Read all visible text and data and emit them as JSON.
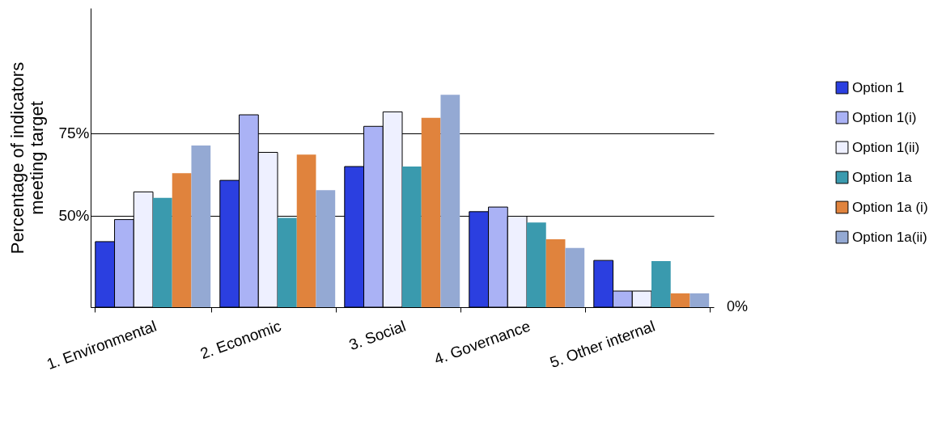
{
  "chart_data": {
    "type": "bar",
    "ylabel": "Percentage of indicators\nmeeting  target",
    "categories": [
      "1. Environmental",
      "2. Economic",
      "3. Social",
      "4. Governance",
      "5. Other internal"
    ],
    "series": [
      {
        "name": "Option 1",
        "color": "#2b3fe0",
        "values": [
          42.1,
          60.7,
          64.9,
          51.2,
          36.4
        ]
      },
      {
        "name": "Option 1(i)",
        "color": "#aab2f5",
        "values": [
          48.8,
          80.6,
          77.1,
          52.6,
          27.1
        ]
      },
      {
        "name": "Option 1(ii)",
        "color": "#eef0ff",
        "values": [
          57.2,
          69.2,
          81.5,
          49.8,
          27.1
        ]
      },
      {
        "name": "Option 1a",
        "color": "#3a9aae",
        "values": [
          55.4,
          49.3,
          64.9,
          47.9,
          36.2
        ]
      },
      {
        "name": "Option 1a (i)",
        "color": "#e0833d",
        "values": [
          62.9,
          68.5,
          79.7,
          42.8,
          26.4
        ]
      },
      {
        "name": "Option 1a(ii)",
        "color": "#94a9d3",
        "values": [
          71.3,
          57.7,
          86.7,
          40.2,
          26.4
        ]
      }
    ],
    "ylim": [
      22.2,
      113
    ],
    "yticks": [
      {
        "value": 50,
        "label": "50%"
      },
      {
        "value": 75,
        "label": "75%"
      }
    ],
    "grid": "y",
    "legend": "right",
    "annotations": [
      "0%"
    ]
  }
}
